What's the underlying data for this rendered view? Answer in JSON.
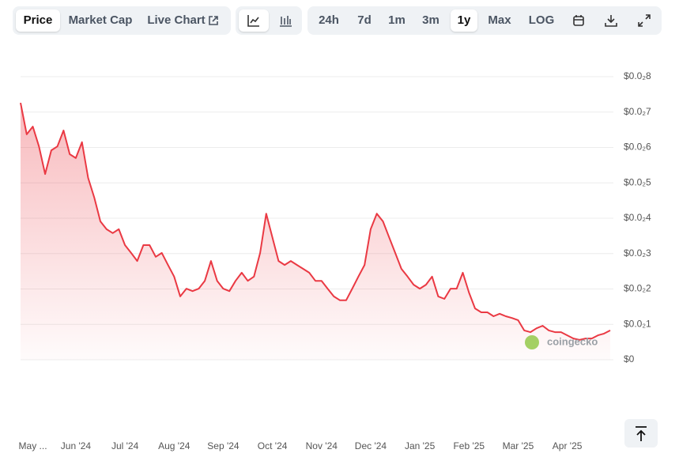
{
  "toolbar": {
    "tabs": [
      "Price",
      "Market Cap",
      "Live Chart"
    ],
    "ranges": [
      "24h",
      "7d",
      "1m",
      "3m",
      "1y",
      "Max",
      "LOG"
    ]
  },
  "watermark": "coingecko",
  "chart_data": {
    "type": "area",
    "color": "#ea3943",
    "categories": [
      null,
      null,
      "May ...",
      null,
      null,
      null,
      null,
      null,
      null,
      "Jun '24",
      null,
      null,
      null,
      null,
      null,
      null,
      null,
      "Jul '24",
      null,
      null,
      null,
      null,
      null,
      null,
      null,
      "Aug '24",
      null,
      null,
      null,
      null,
      null,
      null,
      null,
      "Sep '24",
      null,
      null,
      null,
      null,
      null,
      null,
      null,
      "Oct '24",
      null,
      null,
      null,
      null,
      null,
      null,
      null,
      "Nov '24",
      null,
      null,
      null,
      null,
      null,
      null,
      null,
      "Dec '24",
      null,
      null,
      null,
      null,
      null,
      null,
      null,
      "Jan '25",
      null,
      null,
      null,
      null,
      null,
      null,
      null,
      "Feb '25",
      null,
      null,
      null,
      null,
      null,
      null,
      null,
      "Mar '25",
      null,
      null,
      null,
      null,
      null,
      null,
      null,
      "Apr '25",
      null,
      null,
      null,
      null,
      null,
      null,
      null
    ],
    "values": [
      0.00726,
      0.00637,
      0.00659,
      0.00603,
      0.00525,
      0.00592,
      0.00603,
      0.00648,
      0.00581,
      0.0057,
      0.00615,
      0.00514,
      0.00458,
      0.00391,
      0.00369,
      0.00358,
      0.00369,
      0.00324,
      0.00302,
      0.00279,
      0.00324,
      0.00324,
      0.00291,
      0.00302,
      0.00268,
      0.00235,
      0.00179,
      0.00201,
      0.00194,
      0.00201,
      0.00223,
      0.00279,
      0.00223,
      0.00201,
      0.00194,
      0.00223,
      0.00246,
      0.00223,
      0.00235,
      0.00302,
      0.00413,
      0.00346,
      0.00279,
      0.00268,
      0.00279,
      0.00268,
      0.00257,
      0.00246,
      0.00223,
      0.00223,
      0.00201,
      0.00179,
      0.00168,
      0.00168,
      0.00201,
      0.00235,
      0.00268,
      0.00369,
      0.00413,
      0.00391,
      0.00346,
      0.00302,
      0.00257,
      0.00235,
      0.00212,
      0.00201,
      0.00212,
      0.00235,
      0.00179,
      0.00172,
      0.00201,
      0.00201,
      0.00246,
      0.0019,
      0.00145,
      0.00134,
      0.00134,
      0.00123,
      0.0013,
      0.00123,
      0.00118,
      0.00112,
      0.00083,
      0.00078,
      0.00089,
      0.00096,
      0.00083,
      0.00078,
      0.00078,
      0.00069,
      0.0006,
      0.00056,
      0.0006,
      0.0006,
      0.00069,
      0.00074,
      0.00083
    ],
    "ylim": [
      0,
      0.008
    ],
    "yticks": [
      {
        "value": 0,
        "label": "$0"
      },
      {
        "value": 0.001,
        "label": "$0.0₂1"
      },
      {
        "value": 0.002,
        "label": "$0.0₂2"
      },
      {
        "value": 0.003,
        "label": "$0.0₂3"
      },
      {
        "value": 0.004,
        "label": "$0.0₂4"
      },
      {
        "value": 0.005,
        "label": "$0.0₂5"
      },
      {
        "value": 0.006,
        "label": "$0.0₂6"
      },
      {
        "value": 0.007,
        "label": "$0.0₂7"
      },
      {
        "value": 0.008,
        "label": "$0.0₂8"
      }
    ],
    "grid": true
  }
}
